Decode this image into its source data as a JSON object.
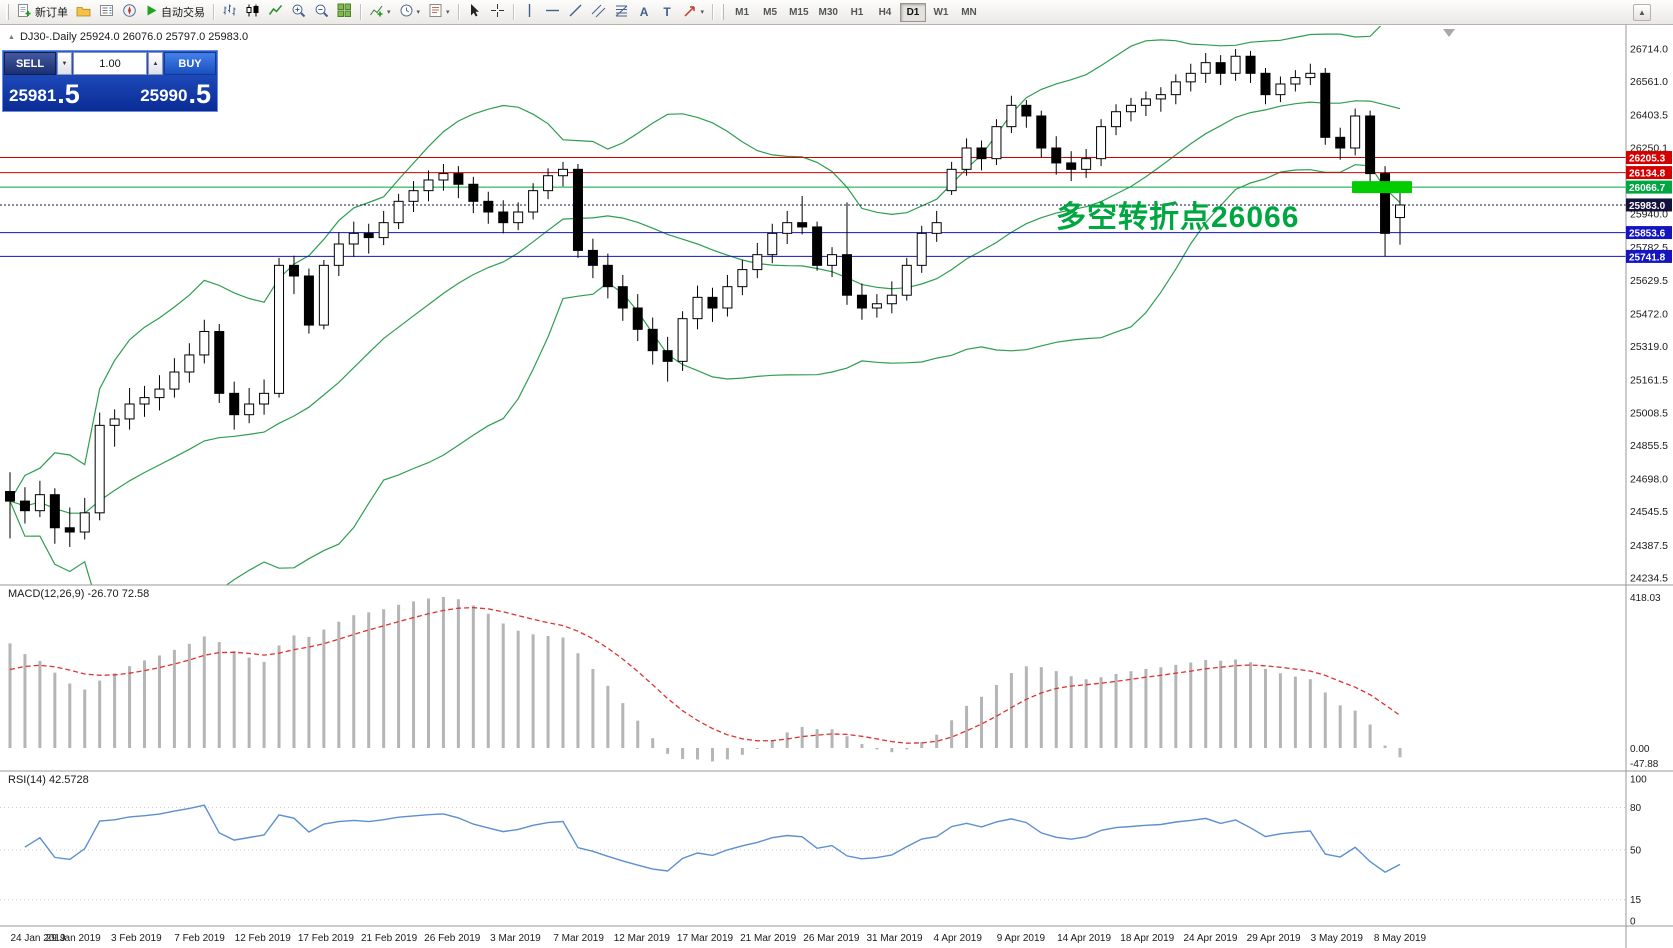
{
  "toolbar": {
    "new_order_label": "新订单",
    "autotrading_label": "自动交易",
    "timeframes": [
      "M1",
      "M5",
      "M15",
      "M30",
      "H1",
      "H4",
      "D1",
      "W1",
      "MN"
    ],
    "active_timeframe": "D1"
  },
  "icons": {
    "marker": "▲",
    "caret": "▾",
    "scroll_up": "▲",
    "volume_down": "▼",
    "volume_up": "▲",
    "text_tool": "A",
    "label_tool": "T",
    "vertical_line": "│",
    "horizontal_line": "─",
    "trend_line": "╱"
  },
  "chart_header": {
    "symbol_line": "DJ30-.Daily  25924.0 26076.0 25797.0 25983.0"
  },
  "one_click": {
    "sell_label": "SELL",
    "buy_label": "BUY",
    "volume": "1.00",
    "sell_main": "25981",
    "sell_frac": ".5",
    "buy_main": "25990",
    "buy_frac": ".5"
  },
  "chart_data": {
    "type": "candlestick",
    "symbol": "DJ30-",
    "timeframe": "Daily",
    "ohlc_display": {
      "open": "25924.0",
      "high": "26076.0",
      "low": "25797.0",
      "close": "25983.0"
    },
    "price_axis": {
      "min": 24234.5,
      "max": 26714.0,
      "labels": [
        26714.0,
        26561.0,
        26403.5,
        26250.1,
        25940.0,
        25782.5,
        25629.5,
        25472.0,
        25319.0,
        25161.5,
        25008.5,
        24855.5,
        24698.0,
        24545.5,
        24387.5,
        24234.5
      ]
    },
    "levels": [
      {
        "price": 26205.3,
        "label": "26205.3",
        "color": "#d40000",
        "style": "solid"
      },
      {
        "price": 26134.8,
        "label": "26134.8",
        "color": "#d40000",
        "style": "solid"
      },
      {
        "price": 26066.7,
        "label": "26066.7",
        "color": "#00a63f",
        "style": "solid"
      },
      {
        "price": 25983.0,
        "label": "25983.0",
        "color": "#12123c",
        "style": "dotted"
      },
      {
        "price": 25853.6,
        "label": "25853.6",
        "color": "#1515c0",
        "style": "solid"
      },
      {
        "price": 25741.8,
        "label": "25741.8",
        "color": "#1515c0",
        "style": "solid"
      }
    ],
    "highlight": {
      "price": 26066.7,
      "color": "#00cc00"
    },
    "annotation": {
      "text": "多空转折点26066",
      "color": "#00a63f"
    },
    "bollinger": {
      "period": 20,
      "deviation": 2,
      "color": "#2e9e4f"
    },
    "macd": {
      "label": "MACD(12,26,9) -26.70 72.58",
      "fast": 12,
      "slow": 26,
      "signal": 9,
      "axis_labels": [
        "418.03",
        "0.00",
        "-47.88"
      ],
      "bar_color": "#b5b5b5",
      "signal_color": "#dd3333"
    },
    "rsi": {
      "label": "RSI(14) 42.5728",
      "period": 14,
      "value": 42.5728,
      "levels": [
        100,
        80,
        50,
        15,
        0
      ],
      "color": "#5b8fd0"
    },
    "date_labels": [
      "24 Jan 2019",
      "29 Jan 2019",
      "3 Feb 2019",
      "7 Feb 2019",
      "12 Feb 2019",
      "17 Feb 2019",
      "21 Feb 2019",
      "26 Feb 2019",
      "3 Mar 2019",
      "7 Mar 2019",
      "12 Mar 2019",
      "17 Mar 2019",
      "21 Mar 2019",
      "26 Mar 2019",
      "31 Mar 2019",
      "4 Apr 2019",
      "9 Apr 2019",
      "14 Apr 2019",
      "18 Apr 2019",
      "24 Apr 2019",
      "29 Apr 2019",
      "3 May 2019",
      "8 May 2019"
    ],
    "candles": [
      [
        24640,
        24730,
        24420,
        24595
      ],
      [
        24595,
        24660,
        24490,
        24550
      ],
      [
        24550,
        24690,
        24520,
        24625
      ],
      [
        24625,
        24655,
        24395,
        24470
      ],
      [
        24470,
        24565,
        24380,
        24450
      ],
      [
        24450,
        24610,
        24415,
        24540
      ],
      [
        24540,
        25010,
        24505,
        24950
      ],
      [
        24950,
        25025,
        24850,
        24980
      ],
      [
        24980,
        25125,
        24930,
        25050
      ],
      [
        25050,
        25135,
        24990,
        25080
      ],
      [
        25080,
        25185,
        25020,
        25120
      ],
      [
        25120,
        25265,
        25080,
        25200
      ],
      [
        25200,
        25335,
        25150,
        25280
      ],
      [
        25280,
        25445,
        25240,
        25390
      ],
      [
        25390,
        25425,
        25055,
        25100
      ],
      [
        25100,
        25155,
        24930,
        25000
      ],
      [
        25000,
        25125,
        24960,
        25050
      ],
      [
        25050,
        25165,
        25000,
        25100
      ],
      [
        25100,
        25735,
        25080,
        25700
      ],
      [
        25700,
        25745,
        25565,
        25650
      ],
      [
        25650,
        25685,
        25380,
        25420
      ],
      [
        25420,
        25725,
        25400,
        25700
      ],
      [
        25700,
        25855,
        25650,
        25800
      ],
      [
        25800,
        25905,
        25740,
        25850
      ],
      [
        25850,
        25895,
        25755,
        25830
      ],
      [
        25830,
        25955,
        25795,
        25900
      ],
      [
        25900,
        26035,
        25870,
        26000
      ],
      [
        26000,
        26095,
        25950,
        26050
      ],
      [
        26050,
        26145,
        26000,
        26100
      ],
      [
        26100,
        26175,
        26050,
        26130
      ],
      [
        26130,
        26165,
        26015,
        26080
      ],
      [
        26080,
        26115,
        25945,
        26000
      ],
      [
        26000,
        26045,
        25895,
        25950
      ],
      [
        25950,
        26005,
        25850,
        25900
      ],
      [
        25900,
        25995,
        25865,
        25950
      ],
      [
        25950,
        26085,
        25915,
        26050
      ],
      [
        26050,
        26155,
        26010,
        26120
      ],
      [
        26120,
        26185,
        26070,
        26150
      ],
      [
        26150,
        26175,
        25735,
        25770
      ],
      [
        25770,
        25825,
        25640,
        25700
      ],
      [
        25700,
        25755,
        25545,
        25600
      ],
      [
        25600,
        25655,
        25440,
        25500
      ],
      [
        25500,
        25565,
        25345,
        25400
      ],
      [
        25400,
        25455,
        25235,
        25300
      ],
      [
        25300,
        25365,
        25155,
        25250
      ],
      [
        25250,
        25485,
        25205,
        25450
      ],
      [
        25450,
        25605,
        25400,
        25550
      ],
      [
        25550,
        25595,
        25435,
        25500
      ],
      [
        25500,
        25655,
        25460,
        25600
      ],
      [
        25600,
        25725,
        25560,
        25680
      ],
      [
        25680,
        25805,
        25640,
        25750
      ],
      [
        25750,
        25895,
        25710,
        25850
      ],
      [
        25850,
        25955,
        25800,
        25900
      ],
      [
        25900,
        26025,
        25845,
        25880
      ],
      [
        25880,
        25905,
        25675,
        25700
      ],
      [
        25700,
        25785,
        25645,
        25750
      ],
      [
        25750,
        25995,
        25515,
        25560
      ],
      [
        25560,
        25615,
        25445,
        25500
      ],
      [
        25500,
        25565,
        25455,
        25520
      ],
      [
        25520,
        25625,
        25475,
        25560
      ],
      [
        25560,
        25735,
        25535,
        25700
      ],
      [
        25700,
        25885,
        25665,
        25850
      ],
      [
        25850,
        25955,
        25810,
        25900
      ],
      [
        26050,
        26185,
        26030,
        26150
      ],
      [
        26150,
        26295,
        26120,
        26250
      ],
      [
        26250,
        26285,
        26145,
        26200
      ],
      [
        26200,
        26385,
        26170,
        26350
      ],
      [
        26350,
        26495,
        26320,
        26450
      ],
      [
        26450,
        26475,
        26345,
        26400
      ],
      [
        26400,
        26425,
        26205,
        26250
      ],
      [
        26250,
        26305,
        26125,
        26180
      ],
      [
        26180,
        26235,
        26095,
        26150
      ],
      [
        26150,
        26245,
        26110,
        26200
      ],
      [
        26200,
        26385,
        26165,
        26350
      ],
      [
        26350,
        26455,
        26310,
        26420
      ],
      [
        26420,
        26485,
        26375,
        26450
      ],
      [
        26450,
        26515,
        26400,
        26480
      ],
      [
        26480,
        26535,
        26420,
        26500
      ],
      [
        26500,
        26595,
        26455,
        26560
      ],
      [
        26560,
        26645,
        26515,
        26600
      ],
      [
        26600,
        26695,
        26555,
        26650
      ],
      [
        26650,
        26685,
        26545,
        26600
      ],
      [
        26600,
        26714,
        26565,
        26680
      ],
      [
        26680,
        26705,
        26555,
        26600
      ],
      [
        26600,
        26625,
        26455,
        26500
      ],
      [
        26500,
        26585,
        26465,
        26550
      ],
      [
        26550,
        26615,
        26515,
        26580
      ],
      [
        26580,
        26645,
        26545,
        26600
      ],
      [
        26600,
        26625,
        26265,
        26300
      ],
      [
        26300,
        26345,
        26195,
        26250
      ],
      [
        26250,
        26435,
        26215,
        26400
      ],
      [
        26400,
        26425,
        26075,
        26130
      ],
      [
        26130,
        26165,
        25741.8,
        25850
      ],
      [
        25924,
        26076,
        25797,
        25983
      ]
    ]
  }
}
